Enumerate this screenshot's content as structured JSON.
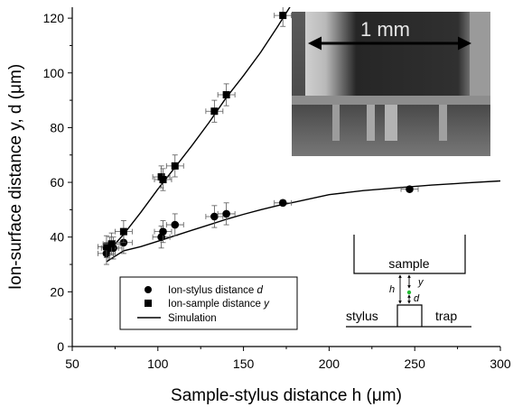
{
  "chart_data": {
    "type": "scatter",
    "xlabel": "Sample-stylus distance h (μm)",
    "ylabel": "Ion-surface distance y, d (μm)",
    "xlim": [
      50,
      300
    ],
    "ylim": [
      0,
      124
    ],
    "xticks": [
      50,
      100,
      150,
      200,
      250,
      300
    ],
    "yticks": [
      0,
      20,
      40,
      60,
      80,
      100,
      120
    ],
    "legend": "bottom-center",
    "grid": false,
    "series": [
      {
        "name": "Ion-stylus distance d",
        "marker": "circle",
        "points": [
          {
            "x": 70,
            "y": 34,
            "xerr": 5,
            "yerr": 4
          },
          {
            "x": 72,
            "y": 36,
            "xerr": 5,
            "yerr": 4
          },
          {
            "x": 74,
            "y": 36,
            "xerr": 5,
            "yerr": 4
          },
          {
            "x": 80,
            "y": 38,
            "xerr": 5,
            "yerr": 4
          },
          {
            "x": 102,
            "y": 40,
            "xerr": 5,
            "yerr": 4
          },
          {
            "x": 103,
            "y": 42,
            "xerr": 5,
            "yerr": 4
          },
          {
            "x": 110,
            "y": 44.5,
            "xerr": 5,
            "yerr": 4
          },
          {
            "x": 133,
            "y": 47.5,
            "xerr": 5,
            "yerr": 4
          },
          {
            "x": 140,
            "y": 48.5,
            "xerr": 5,
            "yerr": 4
          },
          {
            "x": 173,
            "y": 52.5,
            "xerr": 5,
            "yerr": 1
          },
          {
            "x": 247,
            "y": 57.5,
            "xerr": 5,
            "yerr": 1
          }
        ]
      },
      {
        "name": "Ion-sample distance y",
        "marker": "square",
        "points": [
          {
            "x": 70,
            "y": 36.5,
            "xerr": 5,
            "yerr": 4
          },
          {
            "x": 73,
            "y": 37.5,
            "xerr": 5,
            "yerr": 4
          },
          {
            "x": 80,
            "y": 42,
            "xerr": 5,
            "yerr": 4
          },
          {
            "x": 102,
            "y": 62,
            "xerr": 5,
            "yerr": 4
          },
          {
            "x": 103,
            "y": 61,
            "xerr": 5,
            "yerr": 4
          },
          {
            "x": 110,
            "y": 66,
            "xerr": 5,
            "yerr": 4
          },
          {
            "x": 133,
            "y": 86,
            "xerr": 5,
            "yerr": 4
          },
          {
            "x": 140,
            "y": 92,
            "xerr": 5,
            "yerr": 4
          },
          {
            "x": 173,
            "y": 121,
            "xerr": 5,
            "yerr": 4
          }
        ]
      },
      {
        "name": "Simulation",
        "marker": "line",
        "curves": [
          [
            [
              70,
              31
            ],
            [
              80,
              35
            ],
            [
              90,
              36.5
            ],
            [
              100,
              38.5
            ],
            [
              110,
              40.5
            ],
            [
              120,
              42.5
            ],
            [
              130,
              44.5
            ],
            [
              140,
              46.5
            ],
            [
              150,
              48.3
            ],
            [
              160,
              50
            ],
            [
              170,
              51.5
            ],
            [
              180,
              52.8
            ],
            [
              200,
              55.5
            ],
            [
              220,
              57
            ],
            [
              240,
              58
            ],
            [
              260,
              59
            ],
            [
              280,
              59.8
            ],
            [
              300,
              60.5
            ]
          ],
          [
            [
              70,
              34
            ],
            [
              80,
              41
            ],
            [
              90,
              49
            ],
            [
              100,
              57.5
            ],
            [
              110,
              65.5
            ],
            [
              120,
              73.5
            ],
            [
              130,
              82
            ],
            [
              140,
              91
            ],
            [
              150,
              99
            ],
            [
              160,
              107.5
            ],
            [
              170,
              117
            ],
            [
              178,
              125
            ]
          ]
        ]
      }
    ]
  },
  "legend": {
    "items": [
      {
        "label": "Ion-stylus distance ",
        "var": "d"
      },
      {
        "label": "Ion-sample distance ",
        "var": "y"
      },
      {
        "label": "Simulation",
        "var": ""
      }
    ]
  },
  "photo_inset": {
    "scale_label": "1 mm"
  },
  "schematic_inset": {
    "sample_label": "sample",
    "stylus_label": "stylus",
    "trap_label": "trap",
    "h_label": "h",
    "y_label": "y",
    "d_label": "d"
  },
  "colors": {
    "axis": "#000000",
    "ion_marker": "#22bb33",
    "background": "#ffffff"
  }
}
